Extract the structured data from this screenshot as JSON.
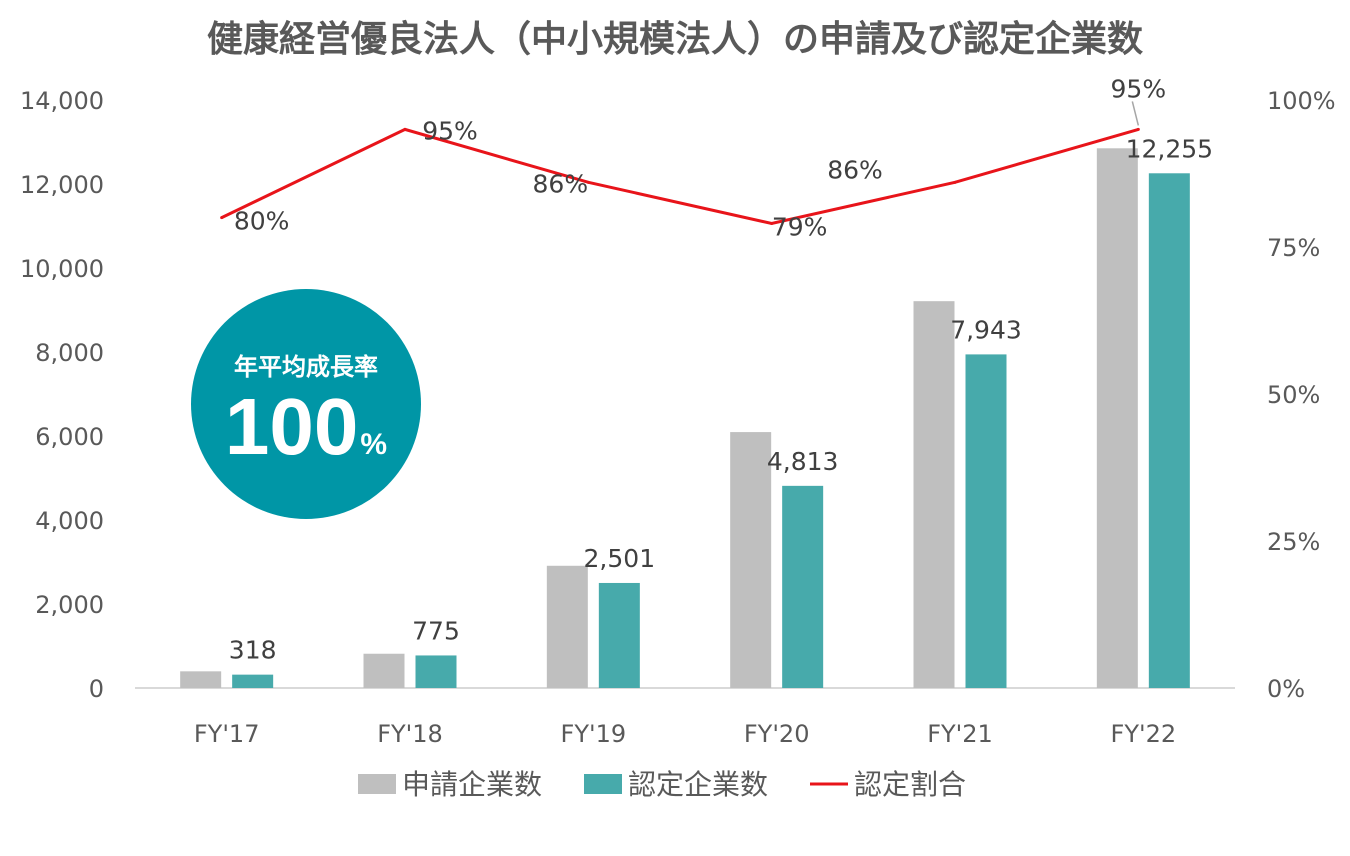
{
  "chart_data": {
    "type": "bar",
    "title": "健康経営優良法人（中小規模法人）の申請及び認定企業数",
    "categories": [
      "FY'17",
      "FY'18",
      "FY'19",
      "FY'20",
      "FY'21",
      "FY'22"
    ],
    "series": [
      {
        "name": "申請企業数",
        "kind": "bar",
        "axis": "left",
        "color": "#bfbfbf",
        "values": [
          397,
          816,
          2910,
          6093,
          9210,
          12850
        ]
      },
      {
        "name": "認定企業数",
        "kind": "bar",
        "axis": "left",
        "color": "#47aaab",
        "values": [
          318,
          775,
          2501,
          4813,
          7943,
          12255
        ],
        "data_labels": [
          "318",
          "775",
          "2,501",
          "4,813",
          "7,943",
          "12,255"
        ]
      },
      {
        "name": "認定割合",
        "kind": "line",
        "axis": "right",
        "color": "#e8141a",
        "values": [
          80,
          95,
          86,
          79,
          86,
          95
        ],
        "data_labels": [
          "80%",
          "95%",
          "86%",
          "79%",
          "86%",
          "95%"
        ]
      }
    ],
    "y_left": {
      "min": 0,
      "max": 14000,
      "ticks": [
        "0",
        "2,000",
        "4,000",
        "6,000",
        "8,000",
        "10,000",
        "12,000",
        "14,000"
      ]
    },
    "y_right": {
      "min": 0,
      "max": 100,
      "ticks": [
        "0%",
        "25%",
        "50%",
        "75%",
        "100%"
      ]
    },
    "legend_position": "bottom",
    "grid": false
  },
  "badge": {
    "label": "年平均成長率",
    "value": "100",
    "unit": "%",
    "color": "#0096a6"
  }
}
